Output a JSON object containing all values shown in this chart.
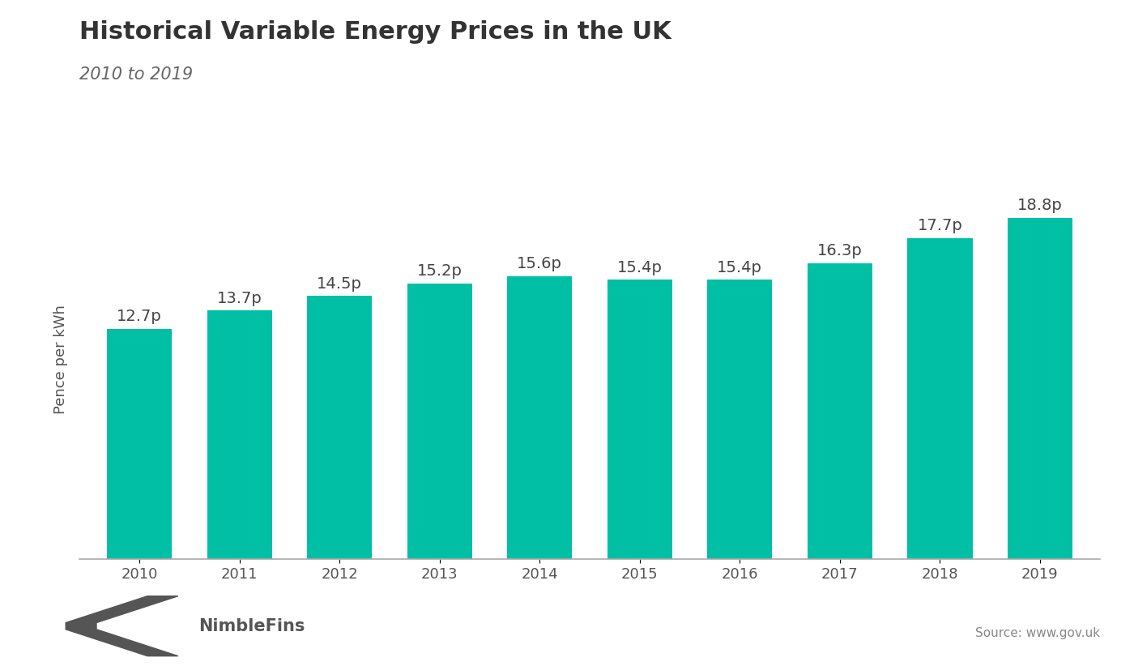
{
  "title": "Historical Variable Energy Prices in the UK",
  "subtitle": "2010 to 2019",
  "ylabel": "Pence per kWh",
  "years": [
    2010,
    2011,
    2012,
    2013,
    2014,
    2015,
    2016,
    2017,
    2018,
    2019
  ],
  "values": [
    12.7,
    13.7,
    14.5,
    15.2,
    15.6,
    15.4,
    15.4,
    16.3,
    17.7,
    18.8
  ],
  "labels": [
    "12.7p",
    "13.7p",
    "14.5p",
    "15.2p",
    "15.6p",
    "15.4p",
    "15.4p",
    "16.3p",
    "17.7p",
    "18.8p"
  ],
  "bar_color": "#00BFA5",
  "background_color": "#ffffff",
  "title_fontsize": 22,
  "subtitle_fontsize": 15,
  "label_fontsize": 14,
  "ylabel_fontsize": 13,
  "tick_fontsize": 13,
  "source_text": "Source: www.gov.uk",
  "nimblefins_text": "NimbleFins",
  "logo_color": "#555555",
  "ylim": [
    0,
    22
  ]
}
